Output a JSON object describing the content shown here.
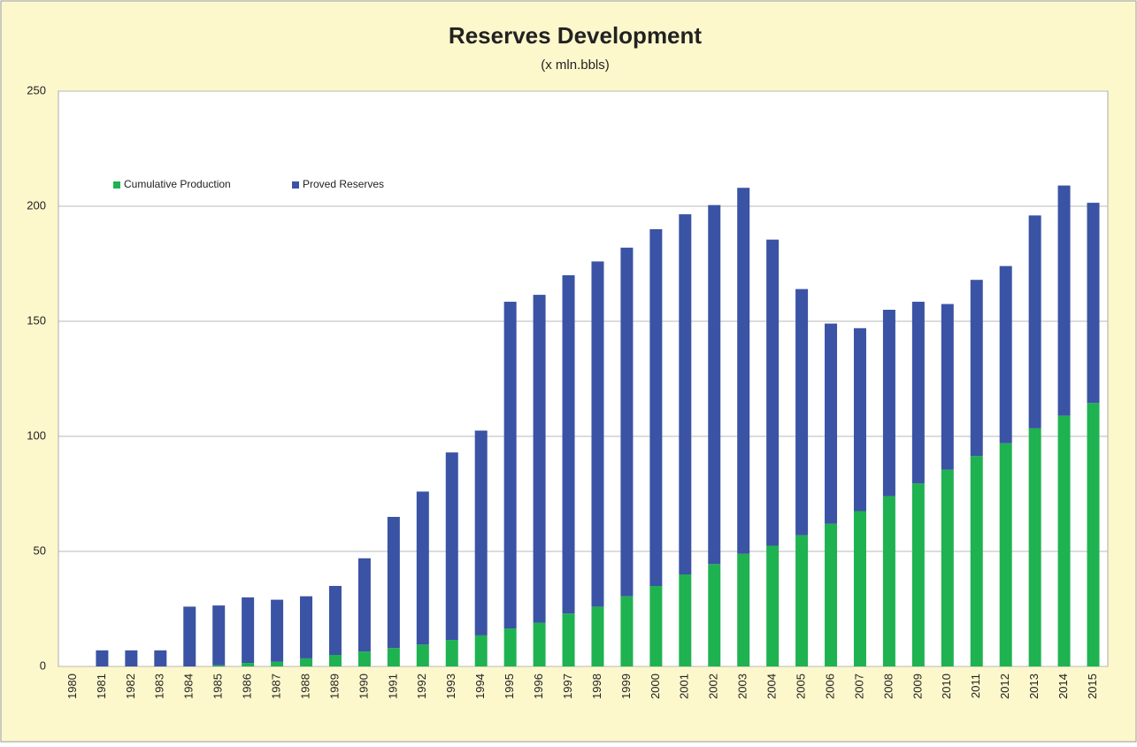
{
  "chart_data": {
    "type": "stacked_bar",
    "title": "Reserves Development",
    "subtitle": "(x mln.bbls)",
    "categories": [
      "1980",
      "1981",
      "1982",
      "1983",
      "1984",
      "1985",
      "1986",
      "1987",
      "1988",
      "1989",
      "1990",
      "1991",
      "1992",
      "1993",
      "1994",
      "1995",
      "1996",
      "1997",
      "1998",
      "1999",
      "2000",
      "2001",
      "2002",
      "2003",
      "2004",
      "2005",
      "2006",
      "2007",
      "2008",
      "2009",
      "2010",
      "2011",
      "2012",
      "2013",
      "2014",
      "2015"
    ],
    "series": [
      {
        "name": "Cumulative Production",
        "color": "#1fb251",
        "values": [
          0,
          0,
          0,
          0,
          0,
          0.5,
          1.5,
          2,
          3.5,
          5,
          6.5,
          8,
          9.5,
          11.5,
          13.5,
          16.5,
          19,
          23,
          26,
          30.5,
          35,
          40,
          44.5,
          49,
          52.5,
          57,
          62,
          67.5,
          74,
          79.5,
          85.5,
          91.5,
          97,
          103.5,
          109,
          114.5
        ]
      },
      {
        "name": "Proved Reserves",
        "color": "#3a53a4",
        "values": [
          0,
          7,
          7,
          7,
          26,
          26,
          28.5,
          27,
          27,
          30,
          40.5,
          57,
          66.5,
          81.5,
          89,
          142,
          142.5,
          147,
          150,
          151.5,
          155,
          156.5,
          156,
          159,
          133,
          107,
          87,
          79.5,
          81,
          79,
          72,
          76.5,
          77,
          92.5,
          100,
          87
        ]
      }
    ],
    "ylim": [
      0,
      250
    ],
    "yticks": [
      0,
      50,
      100,
      150,
      200,
      250
    ],
    "grid": true
  }
}
